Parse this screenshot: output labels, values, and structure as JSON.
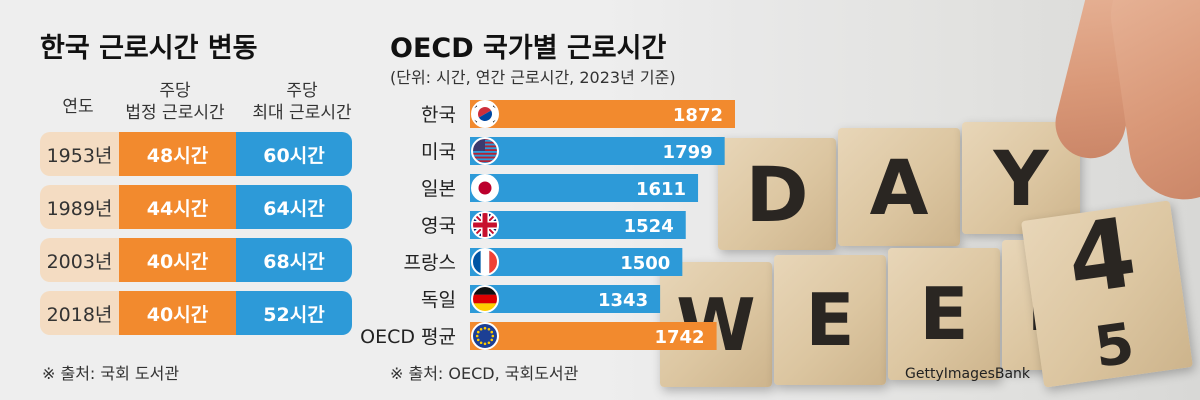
{
  "left": {
    "title": "한국 근로시간 변동",
    "header_year": "연도",
    "header_legal_1": "주당",
    "header_legal_2": "법정 근로시간",
    "header_max_1": "주당",
    "header_max_2": "최대 근로시간",
    "rows": [
      {
        "year": "1953년",
        "legal": "48시간",
        "max": "60시간"
      },
      {
        "year": "1989년",
        "legal": "44시간",
        "max": "64시간"
      },
      {
        "year": "2003년",
        "legal": "40시간",
        "max": "68시간"
      },
      {
        "year": "2018년",
        "legal": "40시간",
        "max": "52시간"
      }
    ],
    "source": "※ 출처: 국회 도서관"
  },
  "chart_data": {
    "type": "bar",
    "title": "OECD 국가별 근로시간",
    "subtitle": "(단위: 시간, 연간 근로시간, 2023년 기준)",
    "categories": [
      "한국",
      "미국",
      "일본",
      "영국",
      "프랑스",
      "독일",
      "OECD 평균"
    ],
    "values": [
      1872,
      1799,
      1611,
      1524,
      1500,
      1343,
      1742
    ],
    "bar_colors": [
      "#f28a2e",
      "#2d9ad8",
      "#2d9ad8",
      "#2d9ad8",
      "#2d9ad8",
      "#2d9ad8",
      "#f28a2e"
    ],
    "flag_icons": [
      "korea-flag-icon",
      "usa-flag-icon",
      "japan-flag-icon",
      "uk-flag-icon",
      "france-flag-icon",
      "germany-flag-icon",
      "oecd-flag-icon"
    ],
    "orientation": "horizontal",
    "xlim": [
      0,
      1872
    ],
    "source": "※ 출처: OECD, 국회도서관"
  },
  "photo": {
    "cube_letters": [
      "D",
      "A",
      "Y",
      "W",
      "E",
      "E",
      "K"
    ],
    "dice_front": "4",
    "dice_bottom": "5",
    "credit": "GettyImagesBank"
  },
  "colors": {
    "orange": "#f28a2e",
    "blue": "#2d9ad8",
    "beige": "#f4dcc2"
  }
}
